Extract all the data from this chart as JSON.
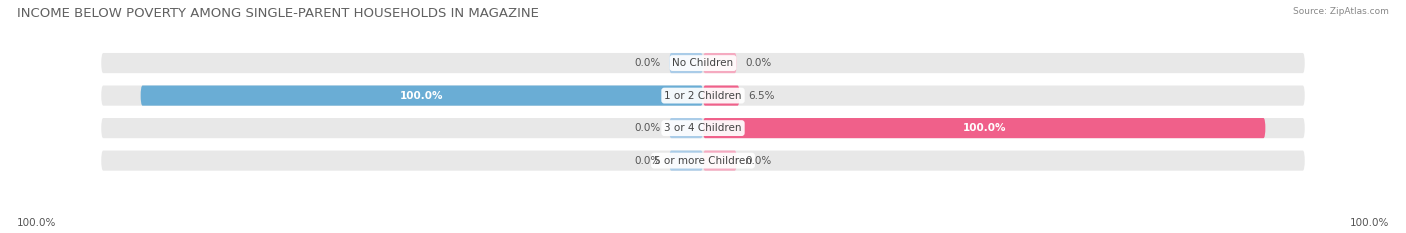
{
  "title": "INCOME BELOW POVERTY AMONG SINGLE-PARENT HOUSEHOLDS IN MAGAZINE",
  "source": "Source: ZipAtlas.com",
  "categories": [
    "No Children",
    "1 or 2 Children",
    "3 or 4 Children",
    "5 or more Children"
  ],
  "father_values": [
    0.0,
    100.0,
    0.0,
    0.0
  ],
  "mother_values": [
    0.0,
    6.5,
    100.0,
    0.0
  ],
  "father_color": "#6aadd5",
  "father_color_light": "#aacce8",
  "mother_color": "#f0608a",
  "mother_color_light": "#f5aac0",
  "bar_bg_color": "#e8e8e8",
  "bar_height": 0.62,
  "title_fontsize": 9.5,
  "label_fontsize": 7.5,
  "cat_fontsize": 7.5,
  "axis_label_left": "100.0%",
  "axis_label_right": "100.0%",
  "stub_size": 6.0,
  "figsize": [
    14.06,
    2.33
  ]
}
